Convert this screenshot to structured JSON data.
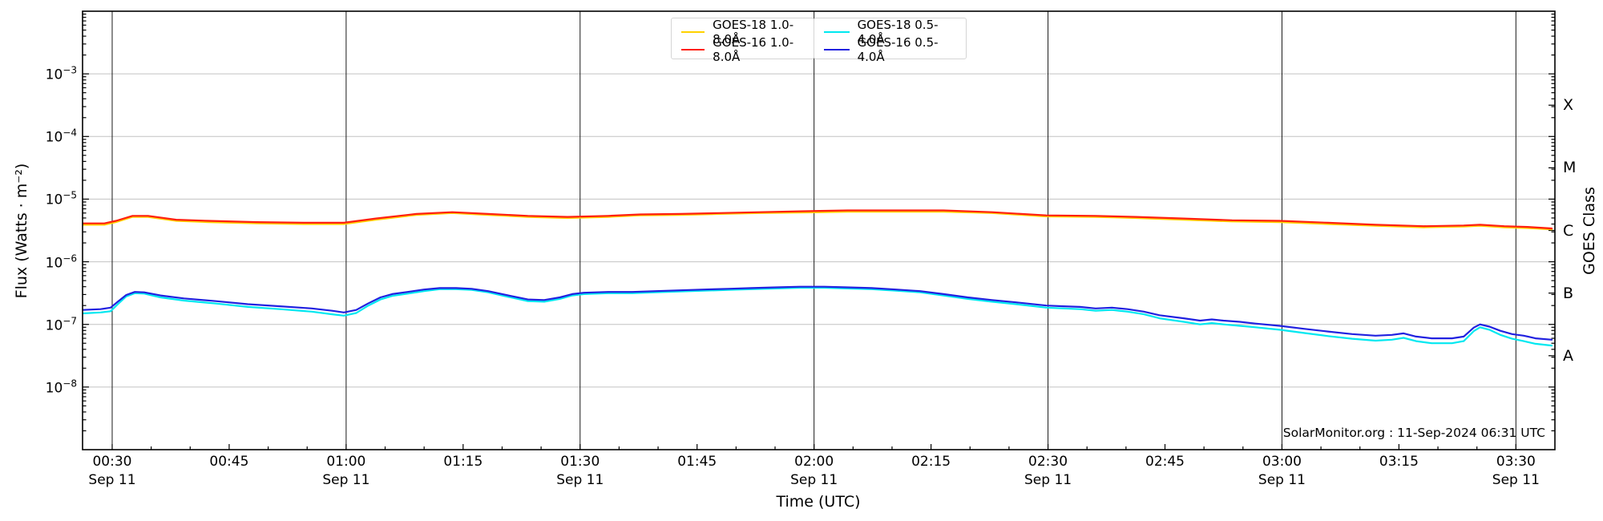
{
  "watermark": "SolarMonitor.org : 11-Sep-2024 06:31 UTC",
  "axes": {
    "x": {
      "label": "Time (UTC)",
      "major_ticks": [
        {
          "minute": 30,
          "label": "00:30",
          "date": "Sep 11"
        },
        {
          "minute": 45,
          "label": "00:45",
          "date": ""
        },
        {
          "minute": 60,
          "label": "01:00",
          "date": "Sep 11"
        },
        {
          "minute": 75,
          "label": "01:15",
          "date": ""
        },
        {
          "minute": 90,
          "label": "01:30",
          "date": "Sep 11"
        },
        {
          "minute": 105,
          "label": "01:45",
          "date": ""
        },
        {
          "minute": 120,
          "label": "02:00",
          "date": "Sep 11"
        },
        {
          "minute": 135,
          "label": "02:15",
          "date": ""
        },
        {
          "minute": 150,
          "label": "02:30",
          "date": "Sep 11"
        },
        {
          "minute": 165,
          "label": "02:45",
          "date": ""
        },
        {
          "minute": 180,
          "label": "03:00",
          "date": "Sep 11"
        },
        {
          "minute": 195,
          "label": "03:15",
          "date": ""
        },
        {
          "minute": 210,
          "label": "03:30",
          "date": "Sep 11"
        }
      ],
      "minor_step_minutes": 5
    },
    "y_left": {
      "label": "Flux (Watts · m⁻²)",
      "tick_exponents": [
        -3,
        -4,
        -5,
        -6,
        -7,
        -8
      ]
    },
    "y_right": {
      "label": "GOES Class",
      "classes": [
        {
          "label": "X",
          "flux": 0.0003162
        },
        {
          "label": "M",
          "flux": 3.162e-05
        },
        {
          "label": "C",
          "flux": 3.162e-06
        },
        {
          "label": "B",
          "flux": 3.162e-07
        },
        {
          "label": "A",
          "flux": 3.162e-08
        }
      ]
    }
  },
  "legend": {
    "box1_series": [
      0,
      1
    ],
    "box2_series": [
      2,
      3
    ]
  },
  "colors": {
    "grid_vertical": "#1a1a1a",
    "grid_horizontal": "#c2c2c2",
    "spine": "#000000"
  },
  "chart_data": {
    "type": "line",
    "title": "",
    "xlabel": "Time (UTC)",
    "ylabel": "Flux (Watts · m⁻²)",
    "ylabel_right": "GOES Class",
    "x_unit": "minutes after 00:00 UTC, 11-Sep-2024",
    "xlim_minutes": [
      26.2,
      215
    ],
    "ylim": [
      1e-09,
      0.01
    ],
    "yscale": "log",
    "grid": {
      "vertical_at_minutes": [
        30,
        60,
        90,
        120,
        150,
        180,
        210
      ],
      "horizontal_at_flux": [
        0.001,
        0.0001,
        1e-05,
        1e-06,
        1e-07,
        1e-08
      ]
    },
    "legend_position": "upper center",
    "series": [
      {
        "name": "GOES-18 1.0-8.0Å",
        "color": "#ffd200",
        "points": [
          [
            26.2,
            3.9e-06
          ],
          [
            29,
            3.9e-06
          ],
          [
            30.5,
            4.3e-06
          ],
          [
            32.6,
            5.2e-06
          ],
          [
            34.6,
            5.2e-06
          ],
          [
            38.2,
            4.5e-06
          ],
          [
            42.3,
            4.3e-06
          ],
          [
            48.5,
            4.1e-06
          ],
          [
            54.6,
            4e-06
          ],
          [
            59.7,
            4e-06
          ],
          [
            63.8,
            4.7e-06
          ],
          [
            69,
            5.6e-06
          ],
          [
            73.6,
            6e-06
          ],
          [
            78.2,
            5.6e-06
          ],
          [
            83.3,
            5.2e-06
          ],
          [
            88.4,
            5e-06
          ],
          [
            93.6,
            5.2e-06
          ],
          [
            97.7,
            5.5e-06
          ],
          [
            102.8,
            5.6e-06
          ],
          [
            107.9,
            5.8e-06
          ],
          [
            113.1,
            6e-06
          ],
          [
            118.2,
            6.1e-06
          ],
          [
            124.3,
            6.3e-06
          ],
          [
            130.5,
            6.3e-06
          ],
          [
            136.6,
            6.3e-06
          ],
          [
            142.8,
            6e-06
          ],
          [
            149.8,
            5.3e-06
          ],
          [
            156.1,
            5.2e-06
          ],
          [
            161.3,
            5e-06
          ],
          [
            167.4,
            4.7e-06
          ],
          [
            173.6,
            4.4e-06
          ],
          [
            179.7,
            4.3e-06
          ],
          [
            185.9,
            4e-06
          ],
          [
            192,
            3.75e-06
          ],
          [
            198.2,
            3.55e-06
          ],
          [
            203.3,
            3.65e-06
          ],
          [
            205.4,
            3.75e-06
          ],
          [
            208.5,
            3.55e-06
          ],
          [
            211.5,
            3.45e-06
          ],
          [
            214.6,
            3.3e-06
          ]
        ]
      },
      {
        "name": "GOES-16 1.0-8.0Å",
        "color": "#ff1f0e",
        "points": [
          [
            26.2,
            4.1e-06
          ],
          [
            29,
            4.1e-06
          ],
          [
            30.5,
            4.5e-06
          ],
          [
            32.6,
            5.4e-06
          ],
          [
            34.6,
            5.4e-06
          ],
          [
            38.2,
            4.7e-06
          ],
          [
            42.3,
            4.5e-06
          ],
          [
            48.5,
            4.3e-06
          ],
          [
            54.6,
            4.2e-06
          ],
          [
            59.7,
            4.2e-06
          ],
          [
            63.8,
            4.9e-06
          ],
          [
            69,
            5.8e-06
          ],
          [
            73.6,
            6.2e-06
          ],
          [
            78.2,
            5.8e-06
          ],
          [
            83.3,
            5.4e-06
          ],
          [
            88.4,
            5.2e-06
          ],
          [
            93.6,
            5.4e-06
          ],
          [
            97.7,
            5.7e-06
          ],
          [
            102.8,
            5.8e-06
          ],
          [
            107.9,
            6e-06
          ],
          [
            113.1,
            6.2e-06
          ],
          [
            118.2,
            6.4e-06
          ],
          [
            124.3,
            6.6e-06
          ],
          [
            130.5,
            6.6e-06
          ],
          [
            136.6,
            6.6e-06
          ],
          [
            142.8,
            6.2e-06
          ],
          [
            149.8,
            5.5e-06
          ],
          [
            156.1,
            5.4e-06
          ],
          [
            161.3,
            5.2e-06
          ],
          [
            167.4,
            4.9e-06
          ],
          [
            173.6,
            4.6e-06
          ],
          [
            179.7,
            4.5e-06
          ],
          [
            185.9,
            4.2e-06
          ],
          [
            192,
            3.9e-06
          ],
          [
            198.2,
            3.7e-06
          ],
          [
            203.3,
            3.8e-06
          ],
          [
            205.4,
            3.9e-06
          ],
          [
            208.5,
            3.7e-06
          ],
          [
            211.5,
            3.6e-06
          ],
          [
            214.6,
            3.4e-06
          ]
        ]
      },
      {
        "name": "GOES-18 0.5-4.0Å",
        "color": "#00e8f0",
        "points": [
          [
            26.2,
            1.5e-07
          ],
          [
            28.5,
            1.55e-07
          ],
          [
            29.8,
            1.62e-07
          ],
          [
            30.8,
            2.15e-07
          ],
          [
            31.8,
            2.8e-07
          ],
          [
            32.9,
            3.15e-07
          ],
          [
            34.1,
            3.1e-07
          ],
          [
            36.2,
            2.7e-07
          ],
          [
            39.2,
            2.4e-07
          ],
          [
            43.3,
            2.15e-07
          ],
          [
            47.4,
            1.9e-07
          ],
          [
            51.5,
            1.75e-07
          ],
          [
            55.6,
            1.6e-07
          ],
          [
            58.2,
            1.45e-07
          ],
          [
            59.7,
            1.38e-07
          ],
          [
            61.3,
            1.52e-07
          ],
          [
            62.8,
            1.98e-07
          ],
          [
            64.4,
            2.5e-07
          ],
          [
            65.9,
            2.85e-07
          ],
          [
            67.9,
            3.1e-07
          ],
          [
            70,
            3.4e-07
          ],
          [
            72,
            3.65e-07
          ],
          [
            74.1,
            3.65e-07
          ],
          [
            76.1,
            3.55e-07
          ],
          [
            78.2,
            3.25e-07
          ],
          [
            80.8,
            2.75e-07
          ],
          [
            83.3,
            2.35e-07
          ],
          [
            85.4,
            2.3e-07
          ],
          [
            87.4,
            2.55e-07
          ],
          [
            89,
            2.9e-07
          ],
          [
            90.5,
            3.05e-07
          ],
          [
            93.6,
            3.15e-07
          ],
          [
            96.7,
            3.15e-07
          ],
          [
            99.7,
            3.25e-07
          ],
          [
            102.8,
            3.35e-07
          ],
          [
            105.9,
            3.45e-07
          ],
          [
            109,
            3.55e-07
          ],
          [
            112,
            3.65e-07
          ],
          [
            115.1,
            3.75e-07
          ],
          [
            118.2,
            3.85e-07
          ],
          [
            121.3,
            3.85e-07
          ],
          [
            124.3,
            3.75e-07
          ],
          [
            127.4,
            3.65e-07
          ],
          [
            130.5,
            3.45e-07
          ],
          [
            133.6,
            3.25e-07
          ],
          [
            136.6,
            2.9e-07
          ],
          [
            139.7,
            2.55e-07
          ],
          [
            142.8,
            2.3e-07
          ],
          [
            145.9,
            2.1e-07
          ],
          [
            149.8,
            1.85e-07
          ],
          [
            152,
            1.8e-07
          ],
          [
            154.1,
            1.75e-07
          ],
          [
            156.1,
            1.65e-07
          ],
          [
            158.2,
            1.7e-07
          ],
          [
            160.2,
            1.6e-07
          ],
          [
            162.3,
            1.45e-07
          ],
          [
            164.3,
            1.25e-07
          ],
          [
            167.4,
            1.1e-07
          ],
          [
            169.5,
            1e-07
          ],
          [
            171,
            1.05e-07
          ],
          [
            172.5,
            1e-07
          ],
          [
            174.6,
            9.5e-08
          ],
          [
            176.6,
            9e-08
          ],
          [
            179.7,
            8.2e-08
          ],
          [
            182.8,
            7.3e-08
          ],
          [
            185.9,
            6.5e-08
          ],
          [
            189,
            5.9e-08
          ],
          [
            192,
            5.5e-08
          ],
          [
            194.1,
            5.7e-08
          ],
          [
            195.6,
            6.1e-08
          ],
          [
            197.2,
            5.4e-08
          ],
          [
            199.2,
            5e-08
          ],
          [
            201.8,
            5e-08
          ],
          [
            203.3,
            5.4e-08
          ],
          [
            204.6,
            7.8e-08
          ],
          [
            205.4,
            9e-08
          ],
          [
            206.6,
            8.2e-08
          ],
          [
            208,
            6.8e-08
          ],
          [
            209.5,
            5.9e-08
          ],
          [
            211,
            5.4e-08
          ],
          [
            212.5,
            4.9e-08
          ],
          [
            214.6,
            4.6e-08
          ]
        ]
      },
      {
        "name": "GOES-16 0.5-4.0Å",
        "color": "#2121e0",
        "points": [
          [
            26.2,
            1.7e-07
          ],
          [
            28.5,
            1.75e-07
          ],
          [
            29.8,
            1.85e-07
          ],
          [
            30.8,
            2.35e-07
          ],
          [
            31.8,
            2.95e-07
          ],
          [
            32.9,
            3.3e-07
          ],
          [
            34.1,
            3.25e-07
          ],
          [
            36.2,
            2.9e-07
          ],
          [
            39.2,
            2.6e-07
          ],
          [
            43.3,
            2.35e-07
          ],
          [
            47.4,
            2.1e-07
          ],
          [
            51.5,
            1.95e-07
          ],
          [
            55.6,
            1.8e-07
          ],
          [
            58.2,
            1.65e-07
          ],
          [
            59.7,
            1.55e-07
          ],
          [
            61.3,
            1.7e-07
          ],
          [
            62.8,
            2.15e-07
          ],
          [
            64.4,
            2.7e-07
          ],
          [
            65.9,
            3.05e-07
          ],
          [
            67.9,
            3.3e-07
          ],
          [
            70,
            3.6e-07
          ],
          [
            72,
            3.8e-07
          ],
          [
            74.1,
            3.8e-07
          ],
          [
            76.1,
            3.7e-07
          ],
          [
            78.2,
            3.4e-07
          ],
          [
            80.8,
            2.9e-07
          ],
          [
            83.3,
            2.5e-07
          ],
          [
            85.4,
            2.45e-07
          ],
          [
            87.4,
            2.7e-07
          ],
          [
            89,
            3.05e-07
          ],
          [
            90.5,
            3.2e-07
          ],
          [
            93.6,
            3.3e-07
          ],
          [
            96.7,
            3.3e-07
          ],
          [
            99.7,
            3.4e-07
          ],
          [
            102.8,
            3.5e-07
          ],
          [
            105.9,
            3.6e-07
          ],
          [
            109,
            3.7e-07
          ],
          [
            112,
            3.8e-07
          ],
          [
            115.1,
            3.9e-07
          ],
          [
            118.2,
            4e-07
          ],
          [
            121.3,
            4e-07
          ],
          [
            124.3,
            3.9e-07
          ],
          [
            127.4,
            3.8e-07
          ],
          [
            130.5,
            3.6e-07
          ],
          [
            133.6,
            3.4e-07
          ],
          [
            136.6,
            3.05e-07
          ],
          [
            139.7,
            2.7e-07
          ],
          [
            142.8,
            2.45e-07
          ],
          [
            145.9,
            2.25e-07
          ],
          [
            149.8,
            2e-07
          ],
          [
            152,
            1.95e-07
          ],
          [
            154.1,
            1.9e-07
          ],
          [
            156.1,
            1.8e-07
          ],
          [
            158.2,
            1.85e-07
          ],
          [
            160.2,
            1.75e-07
          ],
          [
            162.3,
            1.6e-07
          ],
          [
            164.3,
            1.4e-07
          ],
          [
            167.4,
            1.25e-07
          ],
          [
            169.5,
            1.15e-07
          ],
          [
            171,
            1.2e-07
          ],
          [
            172.5,
            1.15e-07
          ],
          [
            174.6,
            1.1e-07
          ],
          [
            176.6,
            1.03e-07
          ],
          [
            179.7,
            9.5e-08
          ],
          [
            182.8,
            8.5e-08
          ],
          [
            185.9,
            7.7e-08
          ],
          [
            189,
            7e-08
          ],
          [
            192,
            6.6e-08
          ],
          [
            194.1,
            6.8e-08
          ],
          [
            195.6,
            7.2e-08
          ],
          [
            197.2,
            6.4e-08
          ],
          [
            199.2,
            6e-08
          ],
          [
            201.8,
            6e-08
          ],
          [
            203.3,
            6.4e-08
          ],
          [
            204.6,
            8.9e-08
          ],
          [
            205.4,
            1e-07
          ],
          [
            206.6,
            9.2e-08
          ],
          [
            208,
            7.9e-08
          ],
          [
            209.5,
            7e-08
          ],
          [
            211,
            6.6e-08
          ],
          [
            212.5,
            6e-08
          ],
          [
            214.6,
            5.7e-08
          ]
        ]
      }
    ]
  }
}
